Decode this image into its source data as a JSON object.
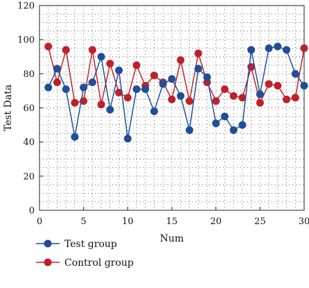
{
  "chart_data": {
    "type": "line",
    "title": "",
    "xlabel": "Num",
    "ylabel": "Test Data",
    "xlim": [
      0,
      30
    ],
    "ylim": [
      0,
      120
    ],
    "xticks": [
      "0",
      "5",
      "10",
      "15",
      "20",
      "25",
      "30"
    ],
    "yticks": [
      "0",
      "20",
      "40",
      "60",
      "80",
      "100",
      "120"
    ],
    "grid": "dotted",
    "legend_position": "bottom-left",
    "x": [
      1,
      2,
      3,
      4,
      5,
      6,
      7,
      8,
      9,
      10,
      11,
      12,
      13,
      14,
      15,
      16,
      17,
      18,
      19,
      20,
      21,
      22,
      23,
      24,
      25,
      26,
      27,
      28,
      29,
      30
    ],
    "series": [
      {
        "name": "Test group",
        "color": "#1f4e9a",
        "values": [
          72,
          83,
          71,
          43,
          72,
          75,
          90,
          59,
          82,
          42,
          71,
          71,
          58,
          74,
          77,
          67,
          47,
          83,
          78,
          51,
          55,
          47,
          50,
          94,
          68,
          95,
          96,
          94,
          80,
          73
        ]
      },
      {
        "name": "Control group",
        "color": "#c0202a",
        "values": [
          96,
          75,
          94,
          63,
          64,
          94,
          62,
          86,
          69,
          66,
          85,
          73,
          79,
          75,
          65,
          88,
          64,
          92,
          75,
          64,
          71,
          67,
          66,
          84,
          63,
          74,
          73,
          65,
          66,
          95
        ]
      }
    ]
  }
}
